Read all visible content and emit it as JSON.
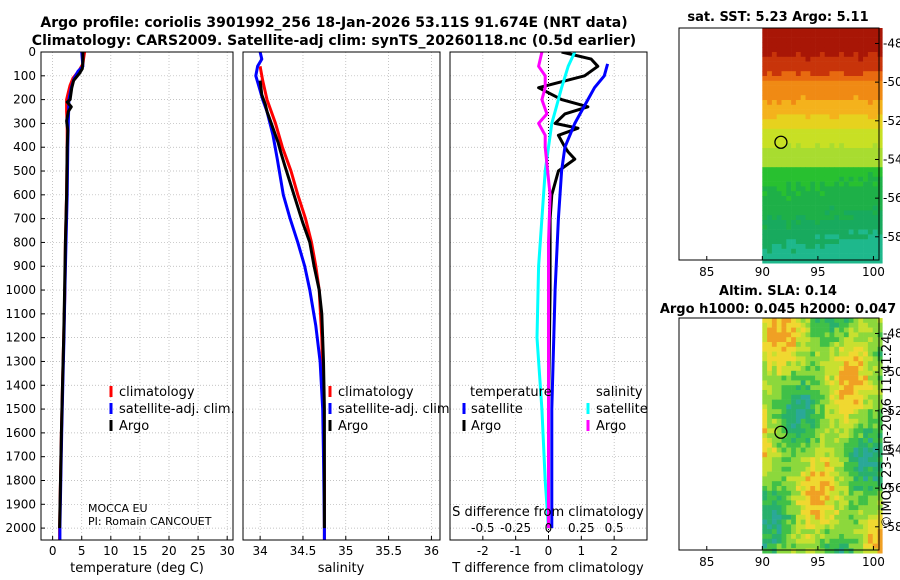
{
  "header": {
    "title_line1": "Argo profile: coriolis 3901992_256 18-Jan-2026 53.11S 91.674E (NRT data)",
    "title_line2": "Climatology: CARS2009. Satellite-adj clim: synTS_20260118.nc (0.5d earlier)"
  },
  "sst_panel": {
    "title": "sat. SST: 5.23 Argo: 5.11"
  },
  "sla_panel": {
    "title1": "Altim. SLA: 0.14",
    "title2": "Argo h1000: 0.045 h2000: 0.047"
  },
  "credit": {
    "line1": "MOCCA EU",
    "line2": "PI: Romain CANCOUET"
  },
  "watermark": "©IMOS 23-Jan-2026 11:41:24",
  "colors": {
    "climatology": "#ff0000",
    "satellite": "#0000ff",
    "argo": "#000000",
    "t_satellite": "#00ffff",
    "s_satellite": "#ff00ff"
  },
  "chart_data": [
    {
      "type": "line",
      "id": "temperature",
      "xlabel": "temperature (deg C)",
      "ylabel": "",
      "xlim": [
        -2,
        31
      ],
      "ylim": [
        2050,
        0
      ],
      "xticks": [
        0,
        5,
        10,
        15,
        20,
        25,
        30
      ],
      "yticks": [
        0,
        100,
        200,
        300,
        400,
        500,
        600,
        700,
        800,
        900,
        1000,
        1100,
        1200,
        1300,
        1400,
        1500,
        1600,
        1700,
        1800,
        1900,
        2000
      ],
      "legend": [
        "climatology",
        "satellite-adj. clim.",
        "Argo"
      ],
      "legend_position": "lower-right",
      "series": [
        {
          "name": "climatology",
          "color": "#ff0000",
          "points": [
            [
              5.5,
              0
            ],
            [
              5.3,
              30
            ],
            [
              5.2,
              50
            ],
            [
              4.5,
              80
            ],
            [
              3.5,
              110
            ],
            [
              3.0,
              140
            ],
            [
              2.7,
              170
            ],
            [
              2.4,
              200
            ],
            [
              2.4,
              250
            ],
            [
              2.5,
              300
            ],
            [
              2.5,
              400
            ],
            [
              2.4,
              600
            ],
            [
              2.2,
              800
            ],
            [
              2.1,
              1000
            ],
            [
              1.9,
              1200
            ],
            [
              1.7,
              1400
            ],
            [
              1.5,
              1600
            ],
            [
              1.35,
              1800
            ],
            [
              1.2,
              2000
            ],
            [
              1.2,
              2050
            ]
          ]
        },
        {
          "name": "satellite-adj. clim.",
          "color": "#0000ff",
          "points": [
            [
              5.0,
              0
            ],
            [
              5.1,
              30
            ],
            [
              5.2,
              60
            ],
            [
              4.4,
              80
            ],
            [
              3.7,
              110
            ],
            [
              3.2,
              150
            ],
            [
              2.8,
              200
            ],
            [
              2.7,
              300
            ],
            [
              2.6,
              400
            ],
            [
              2.5,
              600
            ],
            [
              2.3,
              800
            ],
            [
              2.1,
              1000
            ],
            [
              1.95,
              1200
            ],
            [
              1.75,
              1400
            ],
            [
              1.55,
              1600
            ],
            [
              1.4,
              1800
            ],
            [
              1.25,
              2000
            ],
            [
              1.25,
              2050
            ]
          ]
        },
        {
          "name": "Argo",
          "color": "#000000",
          "points": [
            [
              5.2,
              0
            ],
            [
              5.2,
              40
            ],
            [
              5.1,
              70
            ],
            [
              4.6,
              90
            ],
            [
              3.6,
              120
            ],
            [
              3.3,
              150
            ],
            [
              3.0,
              200
            ],
            [
              2.5,
              210
            ],
            [
              3.2,
              230
            ],
            [
              2.7,
              250
            ],
            [
              2.4,
              290
            ],
            [
              2.6,
              330
            ],
            [
              2.5,
              400
            ],
            [
              2.4,
              600
            ],
            [
              2.2,
              800
            ],
            [
              2.05,
              1000
            ],
            [
              1.9,
              1200
            ],
            [
              1.7,
              1400
            ],
            [
              1.5,
              1600
            ],
            [
              1.35,
              1800
            ],
            [
              1.2,
              2000
            ]
          ]
        }
      ]
    },
    {
      "type": "line",
      "id": "salinity",
      "xlabel": "salinity",
      "xlim": [
        33.8,
        36.1
      ],
      "ylim": [
        2050,
        0
      ],
      "xticks": [
        34,
        34.5,
        35,
        35.5,
        36
      ],
      "legend": [
        "climatology",
        "satellite-adj. clim.",
        "Argo"
      ],
      "legend_position": "lower-right",
      "series": [
        {
          "name": "climatology",
          "color": "#ff0000",
          "points": [
            [
              34.0,
              60
            ],
            [
              34.03,
              120
            ],
            [
              34.08,
              200
            ],
            [
              34.18,
              300
            ],
            [
              34.26,
              400
            ],
            [
              34.36,
              500
            ],
            [
              34.44,
              600
            ],
            [
              34.53,
              700
            ],
            [
              34.6,
              800
            ],
            [
              34.65,
              900
            ],
            [
              34.69,
              1000
            ],
            [
              34.72,
              1200
            ],
            [
              34.74,
              1500
            ],
            [
              34.75,
              1800
            ],
            [
              34.75,
              2050
            ]
          ]
        },
        {
          "name": "satellite-adj. clim.",
          "color": "#0000ff",
          "points": [
            [
              34.0,
              0
            ],
            [
              34.02,
              30
            ],
            [
              33.97,
              60
            ],
            [
              33.95,
              100
            ],
            [
              33.99,
              150
            ],
            [
              34.03,
              200
            ],
            [
              34.08,
              250
            ],
            [
              34.15,
              350
            ],
            [
              34.2,
              450
            ],
            [
              34.27,
              600
            ],
            [
              34.35,
              700
            ],
            [
              34.44,
              800
            ],
            [
              34.52,
              900
            ],
            [
              34.58,
              1000
            ],
            [
              34.65,
              1150
            ],
            [
              34.7,
              1300
            ],
            [
              34.73,
              1500
            ],
            [
              34.74,
              1700
            ],
            [
              34.75,
              2000
            ],
            [
              34.75,
              2050
            ]
          ]
        },
        {
          "name": "Argo",
          "color": "#000000",
          "points": [
            [
              34.0,
              120
            ],
            [
              34.02,
              180
            ],
            [
              34.06,
              220
            ],
            [
              34.08,
              250
            ],
            [
              34.13,
              300
            ],
            [
              34.21,
              380
            ],
            [
              34.24,
              420
            ],
            [
              34.29,
              480
            ],
            [
              34.36,
              560
            ],
            [
              34.43,
              640
            ],
            [
              34.5,
              720
            ],
            [
              34.58,
              800
            ],
            [
              34.63,
              900
            ],
            [
              34.69,
              1000
            ],
            [
              34.72,
              1100
            ],
            [
              34.74,
              1300
            ],
            [
              34.75,
              1500
            ],
            [
              34.75,
              1800
            ],
            [
              34.75,
              2000
            ]
          ]
        }
      ]
    },
    {
      "type": "line",
      "id": "difference",
      "xlabel": "T difference from climatology",
      "xlabel2": "S difference from climatology",
      "xlim": [
        -3.0,
        3.0
      ],
      "ylim": [
        2050,
        0
      ],
      "xticks": [
        -2,
        -1,
        0,
        1,
        2
      ],
      "xticks2_labels": [
        "-0.5",
        "-0.25",
        "0",
        "0.25",
        "0.5"
      ],
      "xticks2_positions": [
        -2,
        -1,
        0,
        1,
        2
      ],
      "legend_left_title": "temperature",
      "legend_right_title": "salinity",
      "legend_left": [
        "satellite",
        "Argo"
      ],
      "legend_right": [
        "satellite",
        "Argo"
      ],
      "series": [
        {
          "name": "T Argo - clim",
          "color": "#000000",
          "points": [
            [
              0.4,
              0
            ],
            [
              1.3,
              30
            ],
            [
              1.5,
              60
            ],
            [
              1.1,
              100
            ],
            [
              -0.3,
              150
            ],
            [
              0.4,
              200
            ],
            [
              1.2,
              230
            ],
            [
              0.5,
              260
            ],
            [
              0.2,
              300
            ],
            [
              0.9,
              320
            ],
            [
              0.3,
              350
            ],
            [
              0.5,
              400
            ],
            [
              0.6,
              420
            ],
            [
              0.8,
              450
            ],
            [
              0.3,
              500
            ],
            [
              0.1,
              600
            ],
            [
              0.05,
              700
            ],
            [
              0.05,
              1000
            ],
            [
              0.0,
              1500
            ],
            [
              0.0,
              2000
            ]
          ]
        },
        {
          "name": "T sat - clim",
          "color": "#0000ff",
          "points": [
            [
              1.8,
              50
            ],
            [
              1.7,
              100
            ],
            [
              1.4,
              150
            ],
            [
              1.2,
              200
            ],
            [
              0.8,
              300
            ],
            [
              0.5,
              400
            ],
            [
              0.4,
              500
            ],
            [
              0.3,
              700
            ],
            [
              0.2,
              1000
            ],
            [
              0.1,
              1500
            ],
            [
              0.1,
              2000
            ]
          ]
        },
        {
          "name": "S sat - clim",
          "color": "#00ffff",
          "points": [
            [
              0.8,
              0
            ],
            [
              0.6,
              60
            ],
            [
              0.4,
              150
            ],
            [
              0.2,
              250
            ],
            [
              0.1,
              300
            ],
            [
              0.0,
              400
            ],
            [
              -0.1,
              500
            ],
            [
              -0.2,
              700
            ],
            [
              -0.3,
              900
            ],
            [
              -0.35,
              1200
            ],
            [
              -0.2,
              1500
            ],
            [
              -0.1,
              1800
            ],
            [
              0.0,
              2000
            ]
          ]
        },
        {
          "name": "S Argo - clim",
          "color": "#ff00ff",
          "points": [
            [
              -0.2,
              0
            ],
            [
              -0.3,
              60
            ],
            [
              -0.1,
              100
            ],
            [
              -0.1,
              150
            ],
            [
              -0.2,
              200
            ],
            [
              -0.05,
              260
            ],
            [
              -0.3,
              300
            ],
            [
              -0.1,
              350
            ],
            [
              -0.1,
              400
            ],
            [
              0.05,
              600
            ],
            [
              0.0,
              800
            ],
            [
              0.0,
              2000
            ]
          ]
        }
      ]
    },
    {
      "type": "heatmap",
      "id": "sst_map",
      "title": "sat. SST: 5.23 Argo: 5.11",
      "xlim": [
        82.5,
        100.5
      ],
      "ylim": [
        -59.2,
        -47.2
      ],
      "xticks": [
        85,
        90,
        95,
        100
      ],
      "yticks": [
        -48,
        -50,
        -52,
        -54,
        -56,
        -58
      ],
      "marker": {
        "lon": 91.674,
        "lat": -53.11
      }
    },
    {
      "type": "heatmap",
      "id": "sla_map",
      "title": "Altim. SLA: 0.14",
      "subtitle": "Argo h1000: 0.045 h2000: 0.047",
      "xlim": [
        82.5,
        100.5
      ],
      "ylim": [
        -59.2,
        -47.2
      ],
      "xticks": [
        85,
        90,
        95,
        100
      ],
      "yticks": [
        -48,
        -50,
        -52,
        -54,
        -56,
        -58
      ],
      "marker": {
        "lon": 91.674,
        "lat": -53.11
      }
    }
  ]
}
